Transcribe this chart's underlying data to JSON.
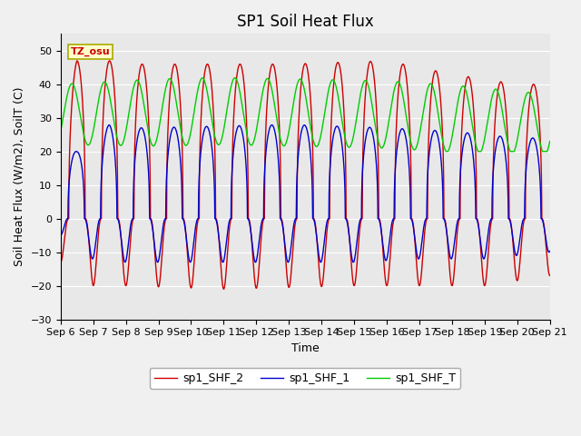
{
  "title": "SP1 Soil Heat Flux",
  "ylabel": "Soil Heat Flux (W/m2), SoilT (C)",
  "xlabel": "Time",
  "ylim": [
    -30,
    55
  ],
  "yticks": [
    -30,
    -20,
    -10,
    0,
    10,
    20,
    30,
    40,
    50
  ],
  "x_labels": [
    "Sep 6",
    "Sep 7",
    "Sep 8",
    "Sep 9",
    "Sep 10",
    "Sep 11",
    "Sep 12",
    "Sep 13",
    "Sep 14",
    "Sep 15",
    "Sep 16",
    "Sep 17",
    "Sep 18",
    "Sep 19",
    "Sep 20",
    "Sep 21"
  ],
  "num_days": 16,
  "bg_color": "#e8e8e8",
  "fig_bg_color": "#f0f0f0",
  "color_shf2": "#cc0000",
  "color_shf1": "#0000cc",
  "color_shft": "#00cc00",
  "legend_labels": [
    "sp1_SHF_2",
    "sp1_SHF_1",
    "sp1_SHF_T"
  ],
  "tz_label": "TZ_osu",
  "title_fontsize": 12,
  "label_fontsize": 9,
  "tick_fontsize": 8,
  "linewidth": 1.0
}
